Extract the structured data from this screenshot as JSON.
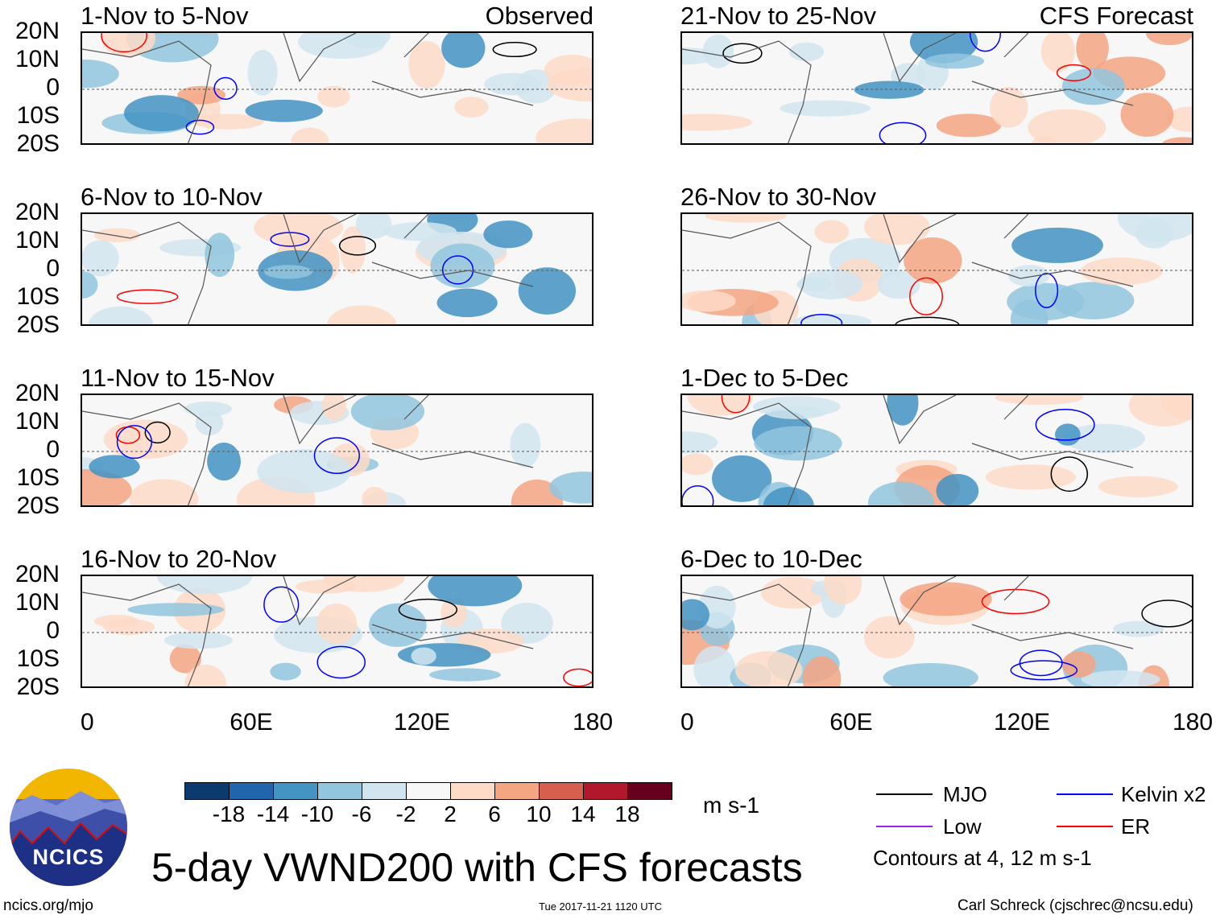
{
  "title": "5-day VWND200 with CFS forecasts",
  "footer": {
    "left": "ncics.org/mjo",
    "center": "Tue 2017-11-21 1120 UTC",
    "right": "Carl Schreck (cjschrec@ncsu.edu)"
  },
  "logo": {
    "text": "NCICS"
  },
  "left_column": {
    "label": "Observed",
    "panels": [
      "1-Nov to 5-Nov",
      "6-Nov to 10-Nov",
      "11-Nov to 15-Nov",
      "16-Nov to 20-Nov"
    ]
  },
  "right_column": {
    "label": "CFS Forecast",
    "panels": [
      "21-Nov to 25-Nov",
      "26-Nov to 30-Nov",
      "1-Dec to 5-Dec",
      "6-Dec to 10-Dec"
    ]
  },
  "lat_labels": [
    "20N",
    "10N",
    "0",
    "10S",
    "20S"
  ],
  "lon_labels": [
    "0",
    "60E",
    "120E",
    "180"
  ],
  "colorbar": {
    "unit": "m s-1",
    "labels": [
      "-18",
      "-14",
      "-10",
      "-6",
      "-2",
      "2",
      "6",
      "10",
      "14",
      "18"
    ],
    "colors": [
      "#0b3a6e",
      "#2166ac",
      "#4393c3",
      "#92c5de",
      "#d1e5f0",
      "#f7f7f7",
      "#fddbc7",
      "#f4a582",
      "#d6604d",
      "#b2182b",
      "#67001f"
    ]
  },
  "legend": {
    "items": [
      {
        "label": "MJO",
        "color": "#000000"
      },
      {
        "label": "Kelvin x2",
        "color": "#0000ff"
      },
      {
        "label": "Low",
        "color": "#a020f0"
      },
      {
        "label": "ER",
        "color": "#ff0000"
      }
    ],
    "note": "Contours at 4, 12 m s-1"
  }
}
